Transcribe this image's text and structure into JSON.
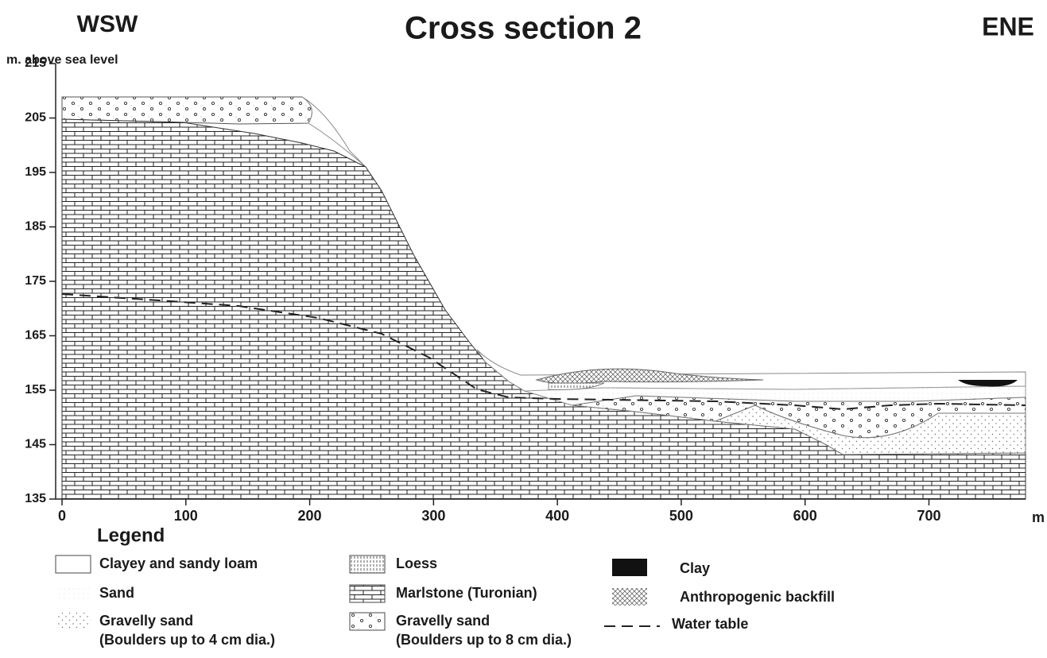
{
  "header": {
    "title": "Cross section 2",
    "left_direction": "WSW",
    "right_direction": "ENE"
  },
  "axes": {
    "y_label": "m. above sea level",
    "x_unit": "m",
    "yticks": [
      135,
      145,
      155,
      165,
      175,
      185,
      195,
      205,
      215
    ],
    "xticks": [
      0,
      100,
      200,
      300,
      400,
      500,
      600,
      700
    ],
    "ylim": [
      135,
      215
    ],
    "xlim": [
      0,
      778
    ]
  },
  "legend": {
    "title": "Legend",
    "items": [
      {
        "label": "Clayey and sandy loam"
      },
      {
        "label": "Sand"
      },
      {
        "label": "Gravelly sand",
        "note": "(Boulders up to 4 cm dia.)"
      },
      {
        "label": "Loess"
      },
      {
        "label": "Marlstone (Turonian)"
      },
      {
        "label": "Gravelly sand",
        "note": "(Boulders up to 8 cm dia.)"
      },
      {
        "label": "Clay"
      },
      {
        "label": "Anthropogenic backfill"
      },
      {
        "label": "Water table"
      }
    ]
  }
}
